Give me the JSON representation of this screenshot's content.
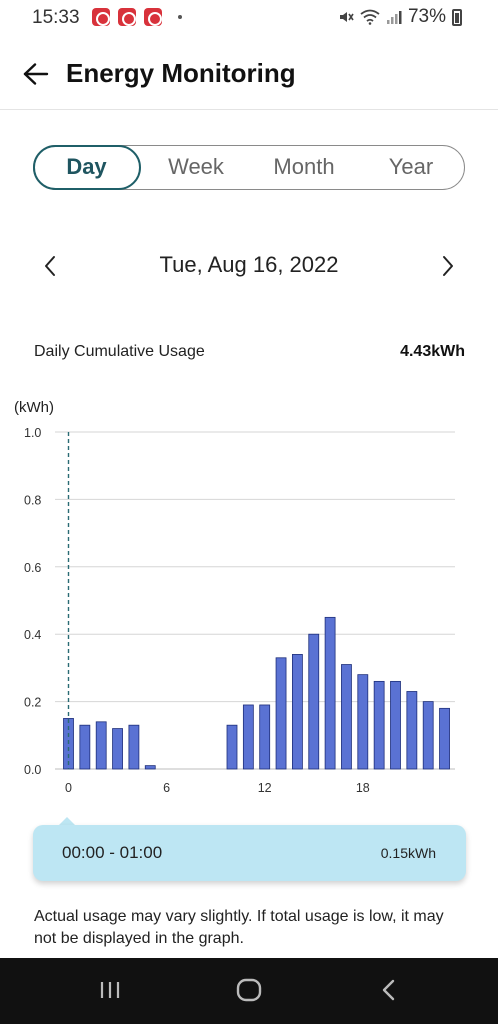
{
  "status_bar": {
    "time": "15:33",
    "battery": "73%",
    "icons": [
      "notification-app-icon",
      "notification-app-icon",
      "notification-app-icon",
      "mute-icon",
      "wifi-icon",
      "signal-icon",
      "battery-icon"
    ]
  },
  "header": {
    "title": "Energy Monitoring",
    "back_icon": "back-arrow-icon"
  },
  "tabs": [
    {
      "label": "Day",
      "active": true
    },
    {
      "label": "Week",
      "active": false
    },
    {
      "label": "Month",
      "active": false
    },
    {
      "label": "Year",
      "active": false
    }
  ],
  "date_nav": {
    "date": "Tue, Aug 16, 2022",
    "prev_icon": "chevron-left-icon",
    "next_icon": "chevron-right-icon"
  },
  "usage": {
    "label": "Daily Cumulative Usage",
    "value": "4.43kWh"
  },
  "chart_data": {
    "type": "bar",
    "ylabel": "(kWh)",
    "ylim": [
      0,
      1.0
    ],
    "yticks": [
      "0.0",
      "0.2",
      "0.4",
      "0.6",
      "0.8",
      "1.0"
    ],
    "xtick_labels": [
      {
        "hour": 0,
        "label": "0"
      },
      {
        "hour": 6,
        "label": "6"
      },
      {
        "hour": 12,
        "label": "12"
      },
      {
        "hour": 18,
        "label": "18"
      }
    ],
    "hours": [
      0,
      1,
      2,
      3,
      4,
      5,
      6,
      7,
      8,
      9,
      10,
      11,
      12,
      13,
      14,
      15,
      16,
      17,
      18,
      19,
      20,
      21,
      22,
      23
    ],
    "values": [
      0.15,
      0.13,
      0.14,
      0.12,
      0.13,
      0.01,
      0,
      0,
      0,
      0,
      0.13,
      0.19,
      0.19,
      0.33,
      0.34,
      0.4,
      0.45,
      0.31,
      0.28,
      0.26,
      0.26,
      0.23,
      0.2,
      0.18
    ],
    "selected_hour": 0,
    "grid": true,
    "bar_color": "#5a72d3",
    "bar_edge_color": "#1e2f7a",
    "selection_line_color": "#2a6b74"
  },
  "tooltip": {
    "time_range": "00:00 - 01:00",
    "value": "0.15kWh"
  },
  "note": "Actual usage may vary slightly. If total usage is low, it may not be displayed in the graph.",
  "nav_bar": {
    "icons": [
      "recent-apps-icon",
      "home-icon",
      "back-icon"
    ]
  },
  "colors": {
    "accent": "#1f5f68",
    "tooltip_bg": "#bde6f3",
    "nav_bg": "#111111"
  }
}
